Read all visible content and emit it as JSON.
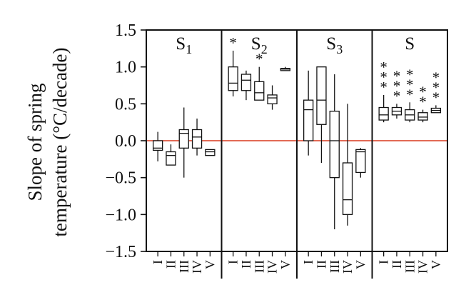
{
  "chart_data": {
    "type": "box",
    "ylabel_lines": [
      "Slope of spring",
      "temperature (°C/decade)"
    ],
    "ylim": [
      -1.5,
      1.5
    ],
    "yticks": [
      {
        "value": 1.5,
        "label": "1.5"
      },
      {
        "value": 1.0,
        "label": "1.0"
      },
      {
        "value": 0.5,
        "label": "0.5"
      },
      {
        "value": 0.0,
        "label": "0.0"
      },
      {
        "value": -0.5,
        "label": "−0.5"
      },
      {
        "value": -1.0,
        "label": "−1.0"
      },
      {
        "value": -1.5,
        "label": "−1.5"
      }
    ],
    "reference_line": {
      "y": 0.0,
      "color": "#d9381e"
    },
    "categories": [
      "I",
      "II",
      "III",
      "IV",
      "V"
    ],
    "panels": [
      {
        "label": "S",
        "subscript": "1",
        "boxes": [
          {
            "min": -0.28,
            "q1": -0.13,
            "median": -0.1,
            "q3": 0.0,
            "max": 0.12
          },
          {
            "min": -0.33,
            "q1": -0.33,
            "median": -0.2,
            "q3": -0.15,
            "max": -0.05
          },
          {
            "min": -0.5,
            "q1": -0.1,
            "median": 0.1,
            "q3": 0.15,
            "max": 0.45
          },
          {
            "min": -0.2,
            "q1": -0.1,
            "median": 0.05,
            "q3": 0.15,
            "max": 0.3
          },
          {
            "min": -0.2,
            "q1": -0.2,
            "median": -0.15,
            "q3": -0.12,
            "max": -0.12
          }
        ],
        "stars": [
          0,
          0,
          0,
          0,
          0
        ]
      },
      {
        "label": "S",
        "subscript": "2",
        "boxes": [
          {
            "min": 0.6,
            "q1": 0.68,
            "median": 0.78,
            "q3": 1.0,
            "max": 1.22
          },
          {
            "min": 0.55,
            "q1": 0.68,
            "median": 0.82,
            "q3": 0.9,
            "max": 0.95
          },
          {
            "min": 0.55,
            "q1": 0.55,
            "median": 0.65,
            "q3": 0.8,
            "max": 1.0
          },
          {
            "min": 0.42,
            "q1": 0.5,
            "median": 0.58,
            "q3": 0.62,
            "max": 0.75
          },
          {
            "min": 0.95,
            "q1": 0.95,
            "median": 0.97,
            "q3": 0.98,
            "max": 1.0
          }
        ],
        "stars": [
          1,
          0,
          1,
          0,
          0
        ]
      },
      {
        "label": "S",
        "subscript": "3",
        "boxes": [
          {
            "min": -0.2,
            "q1": 0.0,
            "median": 0.42,
            "q3": 0.55,
            "max": 0.95
          },
          {
            "min": -0.3,
            "q1": 0.22,
            "median": 0.55,
            "q3": 1.0,
            "max": 1.0
          },
          {
            "min": -1.2,
            "q1": -0.5,
            "median": 0.0,
            "q3": 0.4,
            "max": 0.9
          },
          {
            "min": -1.15,
            "q1": -1.0,
            "median": -0.8,
            "q3": -0.3,
            "max": 0.5
          },
          {
            "min": -0.5,
            "q1": -0.43,
            "median": -0.15,
            "q3": -0.12,
            "max": -0.1
          }
        ],
        "stars": [
          0,
          0,
          0,
          0,
          0
        ]
      },
      {
        "label": "S",
        "subscript": "",
        "boxes": [
          {
            "min": 0.25,
            "q1": 0.28,
            "median": 0.35,
            "q3": 0.45,
            "max": 0.62
          },
          {
            "min": 0.3,
            "q1": 0.35,
            "median": 0.4,
            "q3": 0.45,
            "max": 0.5
          },
          {
            "min": 0.25,
            "q1": 0.28,
            "median": 0.35,
            "q3": 0.42,
            "max": 0.52
          },
          {
            "min": 0.25,
            "q1": 0.28,
            "median": 0.32,
            "q3": 0.38,
            "max": 0.42
          },
          {
            "min": 0.38,
            "q1": 0.38,
            "median": 0.41,
            "q3": 0.44,
            "max": 0.48
          }
        ],
        "stars": [
          3,
          3,
          3,
          2,
          3
        ]
      }
    ],
    "grid": false,
    "legend": "none"
  }
}
